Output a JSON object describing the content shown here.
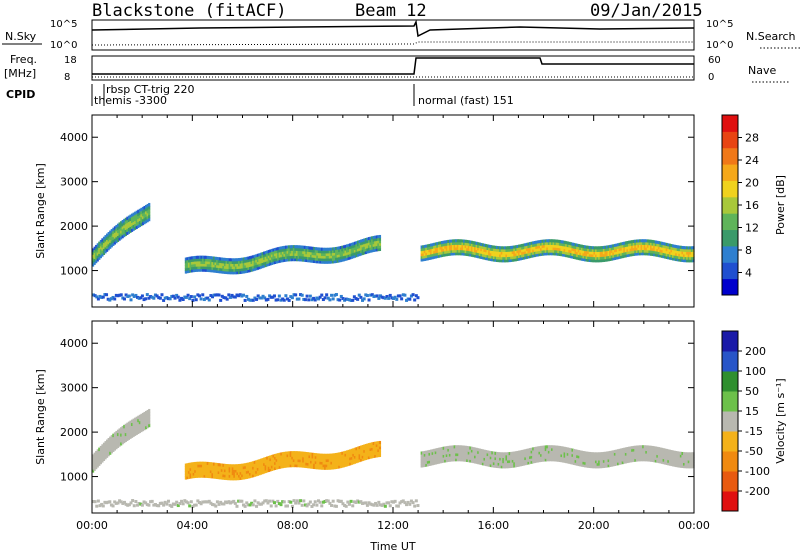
{
  "header": {
    "station": "Blackstone (fitACF)",
    "beam": "Beam 12",
    "date": "09/Jan/2015"
  },
  "top_panels": {
    "nsky_label": "N.Sky",
    "nsky_ticks": [
      "10^5",
      "10^0"
    ],
    "nsearch_label": "N.Search",
    "freq_label": "Freq.",
    "freq_unit": "[MHz]",
    "freq_ticks": [
      "18",
      "8"
    ],
    "nave_label": "Nave",
    "nave_ticks": [
      "60",
      "0"
    ],
    "cpid_label": "CPID",
    "cpid_entries": [
      {
        "text": "rbsp CT-trig 220"
      },
      {
        "text": "themis -3300"
      },
      {
        "text": "normal (fast) 151"
      }
    ]
  },
  "colors": {
    "power_scale": [
      "#0000cc",
      "#1f4fd0",
      "#2e7fcf",
      "#3a9a6a",
      "#5fb45a",
      "#a8c83a",
      "#f0d21e",
      "#f5a81a",
      "#f07818",
      "#e84412",
      "#e01010"
    ],
    "velocity_scale": [
      "#1a1aa8",
      "#2855c8",
      "#2f8f2f",
      "#6cc04a",
      "#b8b8b0",
      "#f4b21a",
      "#f08a10",
      "#e85a10",
      "#e01010"
    ]
  },
  "chart_data": [
    {
      "type": "heatmap",
      "name": "power",
      "xlabel": "",
      "ylabel": "Slant Range [km]",
      "xlim": [
        "00:00",
        "24:00"
      ],
      "ylim": [
        180,
        4500
      ],
      "yticks": [
        1000,
        2000,
        3000,
        4000
      ],
      "colorbar_label": "Power [dB]",
      "colorbar_ticks": [
        4,
        8,
        12,
        16,
        20,
        24,
        28
      ],
      "colorbar_range": [
        0,
        30
      ],
      "bands": [
        {
          "t_start": 0.0,
          "t_end": 2.3,
          "range_km_start": 1300,
          "range_km_end": 2400,
          "width_km": 400,
          "power_db": 16
        },
        {
          "t_start": 3.7,
          "t_end": 11.5,
          "range_km_start": 1050,
          "range_km_end": 1550,
          "width_km": 350,
          "power_db": 16
        },
        {
          "t_start": 13.1,
          "t_end": 24.0,
          "range_km_start": 1450,
          "range_km_end": 1450,
          "width_km": 350,
          "power_db": 22
        }
      ]
    },
    {
      "type": "heatmap",
      "name": "velocity",
      "xlabel": "Time UT",
      "ylabel": "Slant Range [km]",
      "xlim": [
        "00:00",
        "24:00"
      ],
      "ylim": [
        180,
        4500
      ],
      "xticks": [
        "00:00",
        "04:00",
        "08:00",
        "12:00",
        "16:00",
        "20:00",
        "00:00"
      ],
      "yticks": [
        1000,
        2000,
        3000,
        4000
      ],
      "colorbar_label": "Velocity [m s⁻¹]",
      "colorbar_ticks": [
        "200",
        "100",
        "50",
        "15",
        "-15",
        "-50",
        "-100",
        "-200"
      ],
      "bands": [
        {
          "t_start": 0.0,
          "t_end": 2.3,
          "range_km_start": 1300,
          "range_km_end": 2400,
          "width_km": 400,
          "velocity": 0
        },
        {
          "t_start": 3.7,
          "t_end": 11.5,
          "range_km_start": 1050,
          "range_km_end": 1550,
          "width_km": 350,
          "velocity": -50
        },
        {
          "t_start": 13.1,
          "t_end": 24.0,
          "range_km_start": 1450,
          "range_km_end": 1450,
          "width_km": 350,
          "velocity": 0
        }
      ]
    }
  ]
}
